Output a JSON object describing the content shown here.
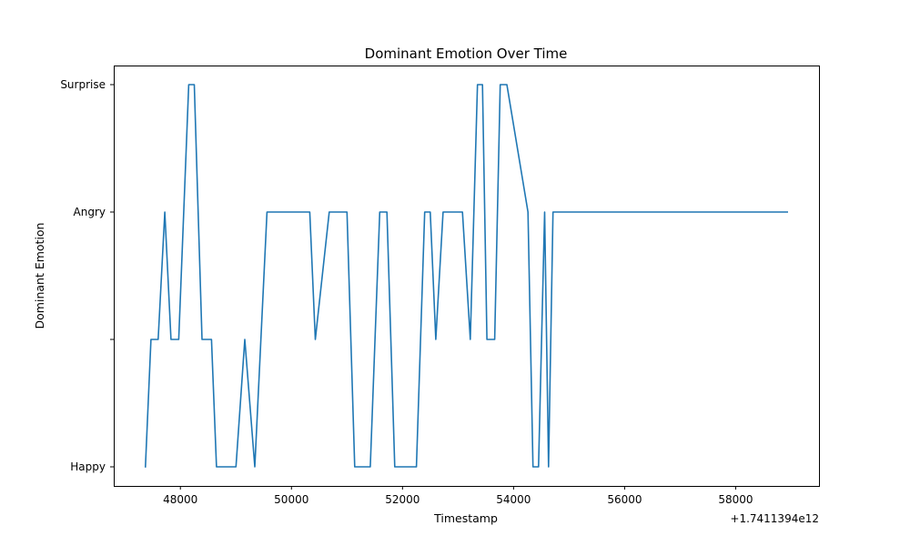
{
  "chart_data": {
    "type": "line",
    "title": "Dominant Emotion Over Time",
    "xlabel": "Timestamp",
    "ylabel": "Dominant Emotion",
    "x_offset_label": "+1.7411394e12",
    "xlim": [
      46800,
      59500
    ],
    "xticks": [
      48000,
      50000,
      52000,
      54000,
      56000,
      58000
    ],
    "y_categories": [
      "Happy",
      "",
      "Angry",
      "Surprise"
    ],
    "ylim": [
      -0.15,
      3.15
    ],
    "grid": false,
    "line_color": "#1f77b4",
    "series": [
      {
        "x": [
          47370,
          47470,
          47600,
          47720,
          47830,
          47970,
          48150,
          48250,
          48390,
          48560,
          48650,
          49000,
          49160,
          49340,
          49560,
          50330,
          50430,
          50680,
          51000,
          51140,
          51420,
          51590,
          51720,
          51860,
          52250,
          52400,
          52500,
          52600,
          52730,
          53080,
          53220,
          53350,
          53440,
          53520,
          53660,
          53760,
          53880,
          54260,
          54350,
          54450,
          54560,
          54630,
          54710,
          58930
        ],
        "y": [
          0,
          1,
          1,
          2,
          1,
          1,
          3,
          3,
          1,
          1,
          0,
          0,
          1,
          0,
          2,
          2,
          1,
          2,
          2,
          0,
          0,
          2,
          2,
          0,
          0,
          2,
          2,
          1,
          2,
          2,
          1,
          3,
          3,
          1,
          1,
          3,
          3,
          2,
          0,
          0,
          2,
          0,
          2,
          2
        ]
      }
    ]
  }
}
